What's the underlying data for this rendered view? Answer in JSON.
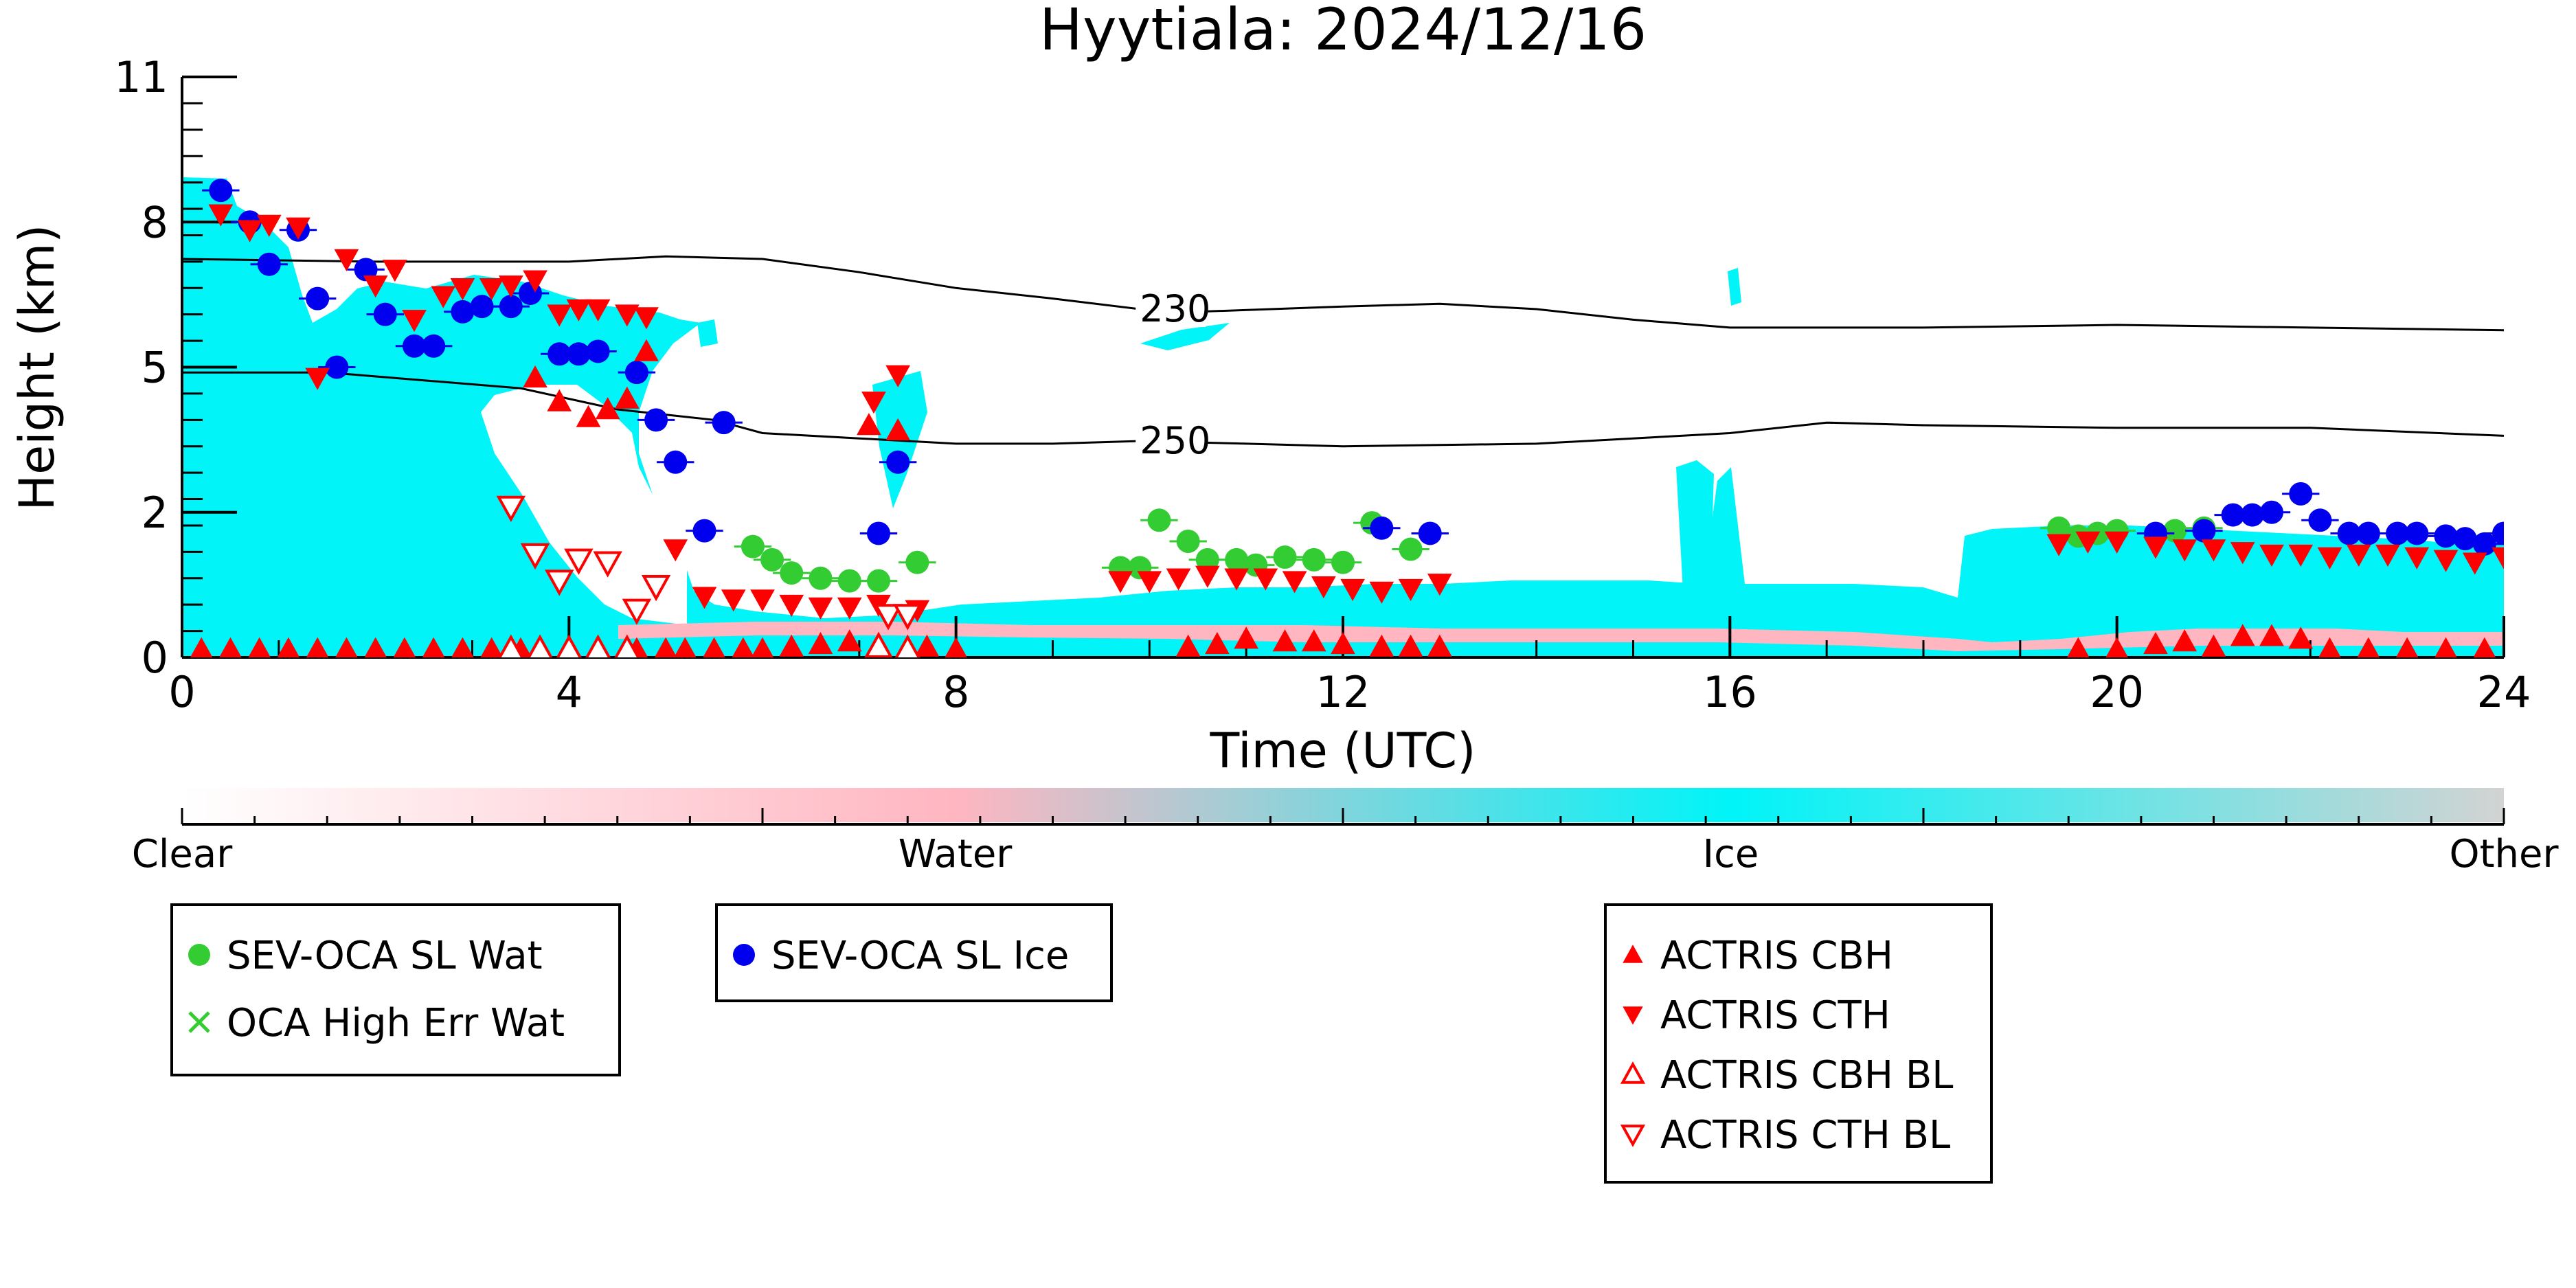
{
  "chart_data": {
    "type": "scatter",
    "title": "Hyytiala: 2024/12/16",
    "xlabel": "Time (UTC)",
    "ylabel": "Height (km)",
    "xlim": [
      0,
      24
    ],
    "ylim": [
      0,
      11
    ],
    "x_ticks": [
      0,
      4,
      8,
      12,
      16,
      20,
      24
    ],
    "y_ticks": [
      0,
      2,
      5,
      8,
      11
    ],
    "y_tick_values": [
      0,
      2.75,
      5.5,
      8.25,
      11
    ],
    "background": "cloud classification field (cyan = ice, pink = water)",
    "colors": {
      "ice": "#00f4f8",
      "water": "#ffb6c1",
      "other": "#d3d3d3",
      "sev_wat": "#33cc33",
      "sev_ice": "#0000ee",
      "actris": "#ff0000"
    },
    "colorbar": {
      "labels": [
        "Clear",
        "Water",
        "Ice",
        "Other"
      ],
      "stops": [
        0,
        0.333,
        0.667,
        1
      ]
    },
    "contours": [
      {
        "label": "230",
        "label_x": 9.9,
        "points": [
          [
            0,
            7.55
          ],
          [
            2,
            7.5
          ],
          [
            4,
            7.5
          ],
          [
            5,
            7.6
          ],
          [
            6,
            7.55
          ],
          [
            7,
            7.3
          ],
          [
            8,
            7.0
          ],
          [
            9,
            6.8
          ],
          [
            9.9,
            6.6
          ],
          [
            10.5,
            6.55
          ],
          [
            12,
            6.65
          ],
          [
            13,
            6.7
          ],
          [
            14,
            6.6
          ],
          [
            15,
            6.4
          ],
          [
            16,
            6.25
          ],
          [
            18,
            6.25
          ],
          [
            20,
            6.3
          ],
          [
            22,
            6.25
          ],
          [
            24,
            6.2
          ]
        ]
      },
      {
        "label": "250",
        "label_x": 9.9,
        "points": [
          [
            0,
            5.4
          ],
          [
            1.5,
            5.4
          ],
          [
            2.5,
            5.25
          ],
          [
            3.5,
            5.1
          ],
          [
            4.5,
            4.7
          ],
          [
            5.5,
            4.5
          ],
          [
            6,
            4.25
          ],
          [
            7,
            4.15
          ],
          [
            8,
            4.05
          ],
          [
            9,
            4.05
          ],
          [
            9.9,
            4.1
          ],
          [
            11,
            4.05
          ],
          [
            12,
            4.0
          ],
          [
            14,
            4.05
          ],
          [
            15,
            4.15
          ],
          [
            16,
            4.25
          ],
          [
            17,
            4.45
          ],
          [
            18,
            4.4
          ],
          [
            20,
            4.35
          ],
          [
            22,
            4.35
          ],
          [
            24,
            4.2
          ]
        ]
      }
    ],
    "series": [
      {
        "name": "SEV-OCA SL Wat",
        "marker": "circle",
        "points": [
          [
            5.9,
            2.1
          ],
          [
            6.1,
            1.85
          ],
          [
            6.3,
            1.6
          ],
          [
            6.6,
            1.5
          ],
          [
            6.9,
            1.45
          ],
          [
            7.2,
            1.45
          ],
          [
            7.6,
            1.8
          ],
          [
            9.7,
            1.7
          ],
          [
            9.9,
            1.7
          ],
          [
            10.1,
            2.6
          ],
          [
            10.4,
            2.2
          ],
          [
            10.6,
            1.85
          ],
          [
            10.9,
            1.85
          ],
          [
            11.1,
            1.75
          ],
          [
            11.4,
            1.9
          ],
          [
            11.7,
            1.85
          ],
          [
            12.0,
            1.8
          ],
          [
            12.3,
            2.55
          ],
          [
            12.7,
            2.05
          ],
          [
            19.4,
            2.45
          ],
          [
            19.6,
            2.3
          ],
          [
            19.8,
            2.35
          ],
          [
            20.0,
            2.4
          ],
          [
            20.6,
            2.4
          ],
          [
            20.9,
            2.45
          ]
        ]
      },
      {
        "name": "OCA High Err Wat",
        "marker": "cross",
        "points": []
      },
      {
        "name": "SEV-OCA SL Ice",
        "marker": "circle",
        "points": [
          [
            0.4,
            8.85
          ],
          [
            0.7,
            8.25
          ],
          [
            0.9,
            7.45
          ],
          [
            1.2,
            8.1
          ],
          [
            1.4,
            6.8
          ],
          [
            1.6,
            5.5
          ],
          [
            1.9,
            7.35
          ],
          [
            2.1,
            6.5
          ],
          [
            2.4,
            5.9
          ],
          [
            2.6,
            5.9
          ],
          [
            2.9,
            6.55
          ],
          [
            3.1,
            6.65
          ],
          [
            3.4,
            6.65
          ],
          [
            3.6,
            6.9
          ],
          [
            3.9,
            5.75
          ],
          [
            4.1,
            5.75
          ],
          [
            4.3,
            5.8
          ],
          [
            4.7,
            5.4
          ],
          [
            4.9,
            4.5
          ],
          [
            5.1,
            3.7
          ],
          [
            5.4,
            2.4
          ],
          [
            5.6,
            4.45
          ],
          [
            7.2,
            2.35
          ],
          [
            7.4,
            3.7
          ],
          [
            12.4,
            2.45
          ],
          [
            12.9,
            2.35
          ],
          [
            20.4,
            2.35
          ],
          [
            20.9,
            2.4
          ],
          [
            21.2,
            2.7
          ],
          [
            21.4,
            2.7
          ],
          [
            21.6,
            2.75
          ],
          [
            21.9,
            3.1
          ],
          [
            22.1,
            2.6
          ],
          [
            22.4,
            2.35
          ],
          [
            22.6,
            2.35
          ],
          [
            22.9,
            2.35
          ],
          [
            23.1,
            2.35
          ],
          [
            23.4,
            2.3
          ],
          [
            23.6,
            2.25
          ],
          [
            23.8,
            2.15
          ],
          [
            24.0,
            2.35
          ]
        ]
      },
      {
        "name": "ACTRIS CBH",
        "marker": "triangle-up",
        "points": [
          [
            0.2,
            0.15
          ],
          [
            0.5,
            0.15
          ],
          [
            0.8,
            0.15
          ],
          [
            1.1,
            0.15
          ],
          [
            1.4,
            0.15
          ],
          [
            1.7,
            0.15
          ],
          [
            2.0,
            0.15
          ],
          [
            2.3,
            0.15
          ],
          [
            2.6,
            0.15
          ],
          [
            2.9,
            0.15
          ],
          [
            3.2,
            0.15
          ],
          [
            3.5,
            0.15
          ],
          [
            3.65,
            5.3
          ],
          [
            3.7,
            0.15
          ],
          [
            3.9,
            4.85
          ],
          [
            4.0,
            0.15
          ],
          [
            4.2,
            4.55
          ],
          [
            4.3,
            0.15
          ],
          [
            4.4,
            4.7
          ],
          [
            4.6,
            4.9
          ],
          [
            4.7,
            0.15
          ],
          [
            4.8,
            5.8
          ],
          [
            5.0,
            0.15
          ],
          [
            5.2,
            0.15
          ],
          [
            5.5,
            0.15
          ],
          [
            5.8,
            0.15
          ],
          [
            6.0,
            0.15
          ],
          [
            6.3,
            0.2
          ],
          [
            6.6,
            0.25
          ],
          [
            6.9,
            0.3
          ],
          [
            7.1,
            4.4
          ],
          [
            7.2,
            0.25
          ],
          [
            7.4,
            4.3
          ],
          [
            7.7,
            0.2
          ],
          [
            8.0,
            0.15
          ],
          [
            10.4,
            0.2
          ],
          [
            10.7,
            0.25
          ],
          [
            11.0,
            0.35
          ],
          [
            11.4,
            0.3
          ],
          [
            11.7,
            0.3
          ],
          [
            12.0,
            0.25
          ],
          [
            12.4,
            0.2
          ],
          [
            12.7,
            0.2
          ],
          [
            13.0,
            0.2
          ],
          [
            19.6,
            0.15
          ],
          [
            20.0,
            0.15
          ],
          [
            20.4,
            0.25
          ],
          [
            20.7,
            0.3
          ],
          [
            21.0,
            0.2
          ],
          [
            21.3,
            0.4
          ],
          [
            21.6,
            0.4
          ],
          [
            21.9,
            0.35
          ],
          [
            22.2,
            0.15
          ],
          [
            22.6,
            0.15
          ],
          [
            23.0,
            0.15
          ],
          [
            23.4,
            0.15
          ],
          [
            23.8,
            0.15
          ]
        ]
      },
      {
        "name": "ACTRIS CTH",
        "marker": "triangle-down",
        "points": [
          [
            0.4,
            8.4
          ],
          [
            0.7,
            8.1
          ],
          [
            0.9,
            8.2
          ],
          [
            1.2,
            8.15
          ],
          [
            1.4,
            5.3
          ],
          [
            1.7,
            7.55
          ],
          [
            2.0,
            7.05
          ],
          [
            2.2,
            7.35
          ],
          [
            2.4,
            6.4
          ],
          [
            2.7,
            6.85
          ],
          [
            2.9,
            7.0
          ],
          [
            3.2,
            7.0
          ],
          [
            3.4,
            7.05
          ],
          [
            3.65,
            7.15
          ],
          [
            3.9,
            6.5
          ],
          [
            4.1,
            6.6
          ],
          [
            4.3,
            6.6
          ],
          [
            4.6,
            6.5
          ],
          [
            4.8,
            6.45
          ],
          [
            5.1,
            2.05
          ],
          [
            5.4,
            1.15
          ],
          [
            5.7,
            1.1
          ],
          [
            6.0,
            1.1
          ],
          [
            6.3,
            1.0
          ],
          [
            6.6,
            0.95
          ],
          [
            6.9,
            0.95
          ],
          [
            7.2,
            1.0
          ],
          [
            7.15,
            4.85
          ],
          [
            7.4,
            5.35
          ],
          [
            7.6,
            0.9
          ],
          [
            9.7,
            1.45
          ],
          [
            10.0,
            1.45
          ],
          [
            10.3,
            1.5
          ],
          [
            10.6,
            1.55
          ],
          [
            10.9,
            1.5
          ],
          [
            11.2,
            1.5
          ],
          [
            11.5,
            1.45
          ],
          [
            11.8,
            1.35
          ],
          [
            12.1,
            1.3
          ],
          [
            12.4,
            1.25
          ],
          [
            12.7,
            1.3
          ],
          [
            13.0,
            1.4
          ],
          [
            19.4,
            2.15
          ],
          [
            19.7,
            2.2
          ],
          [
            20.0,
            2.2
          ],
          [
            20.4,
            2.1
          ],
          [
            20.7,
            2.05
          ],
          [
            21.0,
            2.05
          ],
          [
            21.3,
            2.0
          ],
          [
            21.6,
            1.95
          ],
          [
            21.9,
            1.95
          ],
          [
            22.2,
            1.9
          ],
          [
            22.5,
            1.95
          ],
          [
            22.8,
            1.95
          ],
          [
            23.1,
            1.9
          ],
          [
            23.4,
            1.85
          ],
          [
            23.7,
            1.8
          ],
          [
            24.0,
            1.9
          ]
        ]
      },
      {
        "name": "ACTRIS CBH BL",
        "marker": "triangle-up-open",
        "points": [
          [
            3.4,
            0.15
          ],
          [
            3.7,
            0.15
          ],
          [
            4.0,
            0.15
          ],
          [
            4.3,
            0.15
          ],
          [
            4.6,
            0.15
          ],
          [
            7.2,
            0.2
          ],
          [
            7.5,
            0.15
          ]
        ]
      },
      {
        "name": "ACTRIS CTH BL",
        "marker": "triangle-down-open",
        "points": [
          [
            3.4,
            2.85
          ],
          [
            3.65,
            1.95
          ],
          [
            3.9,
            1.45
          ],
          [
            4.1,
            1.85
          ],
          [
            4.4,
            1.8
          ],
          [
            4.7,
            0.9
          ],
          [
            4.9,
            1.35
          ],
          [
            7.3,
            0.8
          ],
          [
            7.5,
            0.8
          ]
        ]
      }
    ],
    "legend_groups": [
      [
        "SEV-OCA SL Wat",
        "OCA High Err Wat"
      ],
      [
        "SEV-OCA SL Ice"
      ],
      [
        "ACTRIS CBH",
        "ACTRIS CTH",
        "ACTRIS CBH BL",
        "ACTRIS CTH BL"
      ]
    ],
    "legend_placement": "below"
  }
}
